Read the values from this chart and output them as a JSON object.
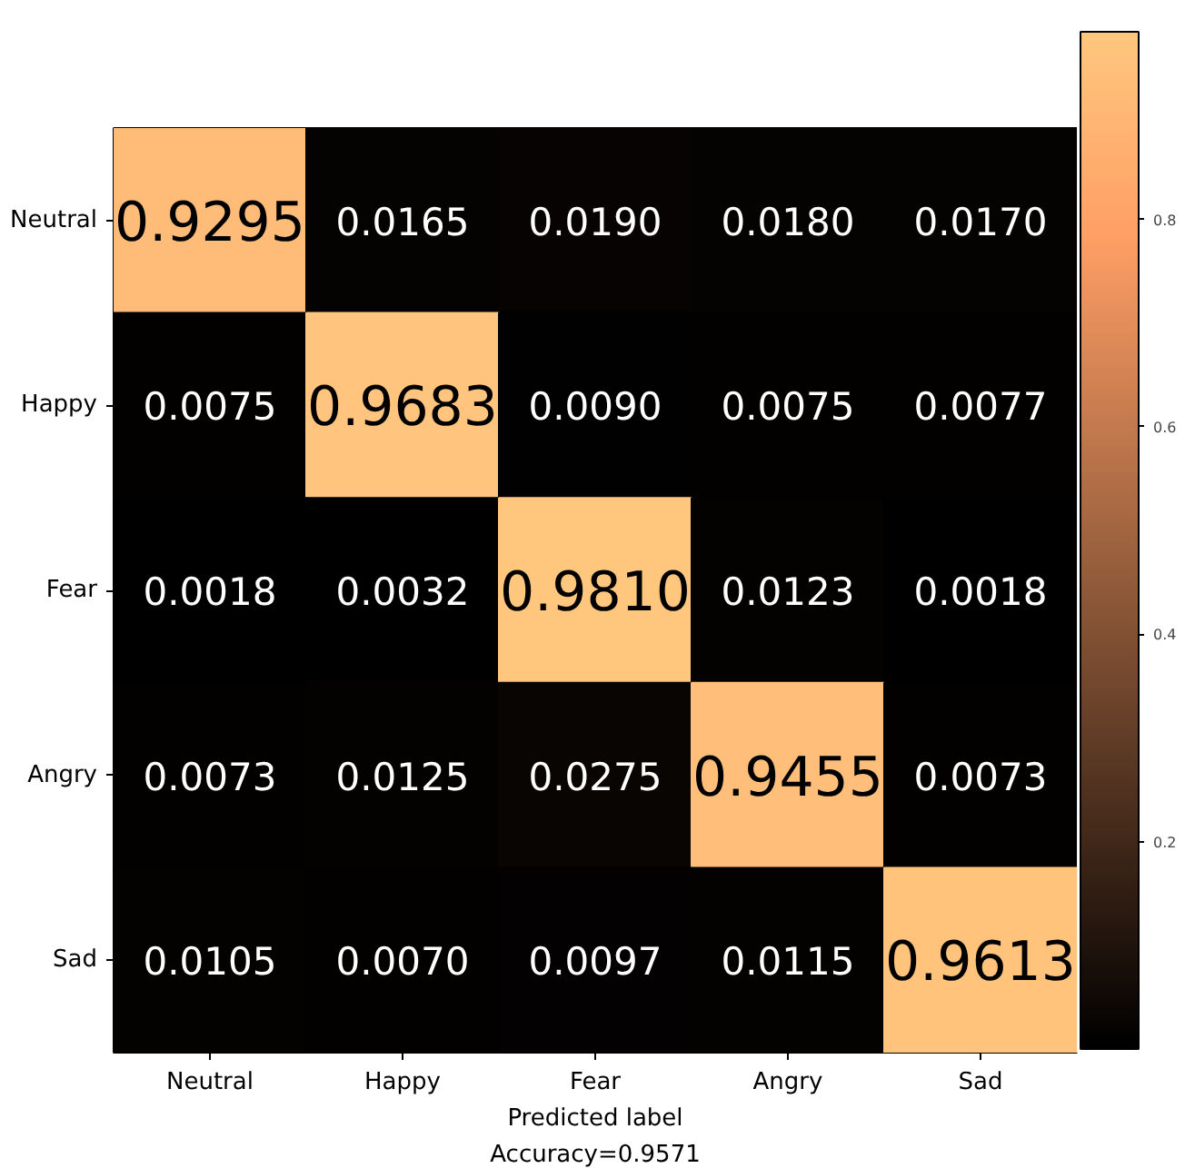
{
  "chart_data": {
    "type": "heatmap",
    "xlabel": "Predicted label",
    "annotations": [
      "Accuracy=0.9571"
    ],
    "categories": [
      "Neutral",
      "Happy",
      "Fear",
      "Angry",
      "Sad"
    ],
    "y_categories": [
      "Neutral",
      "Happy",
      "Fear",
      "Angry",
      "Sad"
    ],
    "cells": [
      [
        0.9295,
        0.0165,
        0.019,
        0.018,
        0.017
      ],
      [
        0.0075,
        0.9683,
        0.009,
        0.0075,
        0.0077
      ],
      [
        0.0018,
        0.0032,
        0.981,
        0.0123,
        0.0018
      ],
      [
        0.0073,
        0.0125,
        0.0275,
        0.9455,
        0.0073
      ],
      [
        0.0105,
        0.007,
        0.0097,
        0.0115,
        0.9613
      ]
    ],
    "cell_labels": [
      [
        "0.9295",
        "0.0165",
        "0.0190",
        "0.0180",
        "0.0170"
      ],
      [
        "0.0075",
        "0.9683",
        "0.0090",
        "0.0075",
        "0.0077"
      ],
      [
        "0.0018",
        "0.0032",
        "0.9810",
        "0.0123",
        "0.0018"
      ],
      [
        "0.0073",
        "0.0125",
        "0.0275",
        "0.9455",
        "0.0073"
      ],
      [
        "0.0105",
        "0.0070",
        "0.0097",
        "0.0115",
        "0.9613"
      ]
    ],
    "clim": [
      0,
      0.981
    ],
    "cticks": [
      0.2,
      0.4,
      0.6,
      0.8
    ]
  }
}
